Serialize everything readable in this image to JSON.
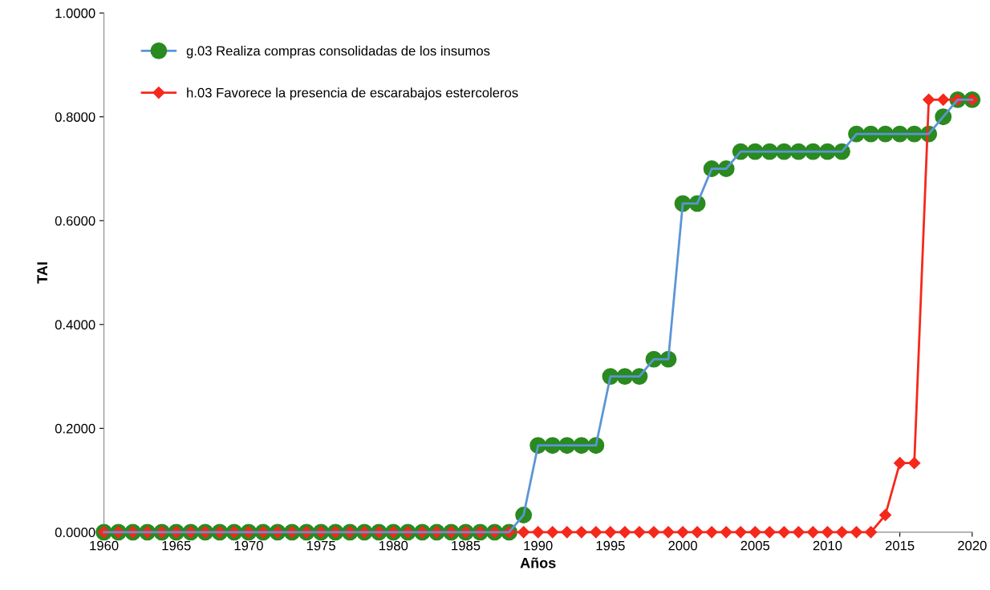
{
  "chart_data": {
    "type": "line",
    "xlabel": "Años",
    "ylabel": "TAI",
    "x": [
      1960,
      1961,
      1962,
      1963,
      1964,
      1965,
      1966,
      1967,
      1968,
      1969,
      1970,
      1971,
      1972,
      1973,
      1974,
      1975,
      1976,
      1977,
      1978,
      1979,
      1980,
      1981,
      1982,
      1983,
      1984,
      1985,
      1986,
      1987,
      1988,
      1989,
      1990,
      1991,
      1992,
      1993,
      1994,
      1995,
      1996,
      1997,
      1998,
      1999,
      2000,
      2001,
      2002,
      2003,
      2004,
      2005,
      2006,
      2007,
      2008,
      2009,
      2010,
      2011,
      2012,
      2013,
      2014,
      2015,
      2016,
      2017,
      2018,
      2019,
      2020
    ],
    "series": [
      {
        "name": "g.03 Realiza compras consolidadas de los insumos",
        "color": "#2a8a1f",
        "marker": "circle",
        "values": [
          0,
          0,
          0,
          0,
          0,
          0,
          0,
          0,
          0,
          0,
          0,
          0,
          0,
          0,
          0,
          0,
          0,
          0,
          0,
          0,
          0,
          0,
          0,
          0,
          0,
          0,
          0,
          0,
          0,
          0.033,
          0.167,
          0.167,
          0.167,
          0.167,
          0.167,
          0.3,
          0.3,
          0.3,
          0.333,
          0.333,
          0.633,
          0.633,
          0.7,
          0.7,
          0.733,
          0.733,
          0.733,
          0.733,
          0.733,
          0.733,
          0.733,
          0.733,
          0.767,
          0.767,
          0.767,
          0.767,
          0.767,
          0.767,
          0.8,
          0.833,
          0.833
        ]
      },
      {
        "name": "h.03 Favorece la presencia de escarabajos estercoleros",
        "color": "#f5281c",
        "marker": "diamond",
        "values": [
          0,
          0,
          0,
          0,
          0,
          0,
          0,
          0,
          0,
          0,
          0,
          0,
          0,
          0,
          0,
          0,
          0,
          0,
          0,
          0,
          0,
          0,
          0,
          0,
          0,
          0,
          0,
          0,
          0,
          0,
          0,
          0,
          0,
          0,
          0,
          0,
          0,
          0,
          0,
          0,
          0,
          0,
          0,
          0,
          0,
          0,
          0,
          0,
          0,
          0,
          0,
          0,
          0,
          0,
          0.033,
          0.133,
          0.133,
          0.833,
          0.833,
          0.833,
          0.833
        ]
      }
    ],
    "xlim": [
      1960,
      2020
    ],
    "xticks": [
      1960,
      1965,
      1970,
      1975,
      1980,
      1985,
      1990,
      1995,
      2000,
      2005,
      2010,
      2015,
      2020
    ],
    "ylim": [
      0,
      1
    ],
    "yticks": [
      {
        "value": 0,
        "label": "0.0000"
      },
      {
        "value": 0.2,
        "label": "0.2000"
      },
      {
        "value": 0.4,
        "label": "0.4000"
      },
      {
        "value": 0.6,
        "label": "0.6000"
      },
      {
        "value": 0.8,
        "label": "0.8000"
      },
      {
        "value": 1,
        "label": "1.0000"
      }
    ],
    "legend": "top left",
    "grid": false
  }
}
